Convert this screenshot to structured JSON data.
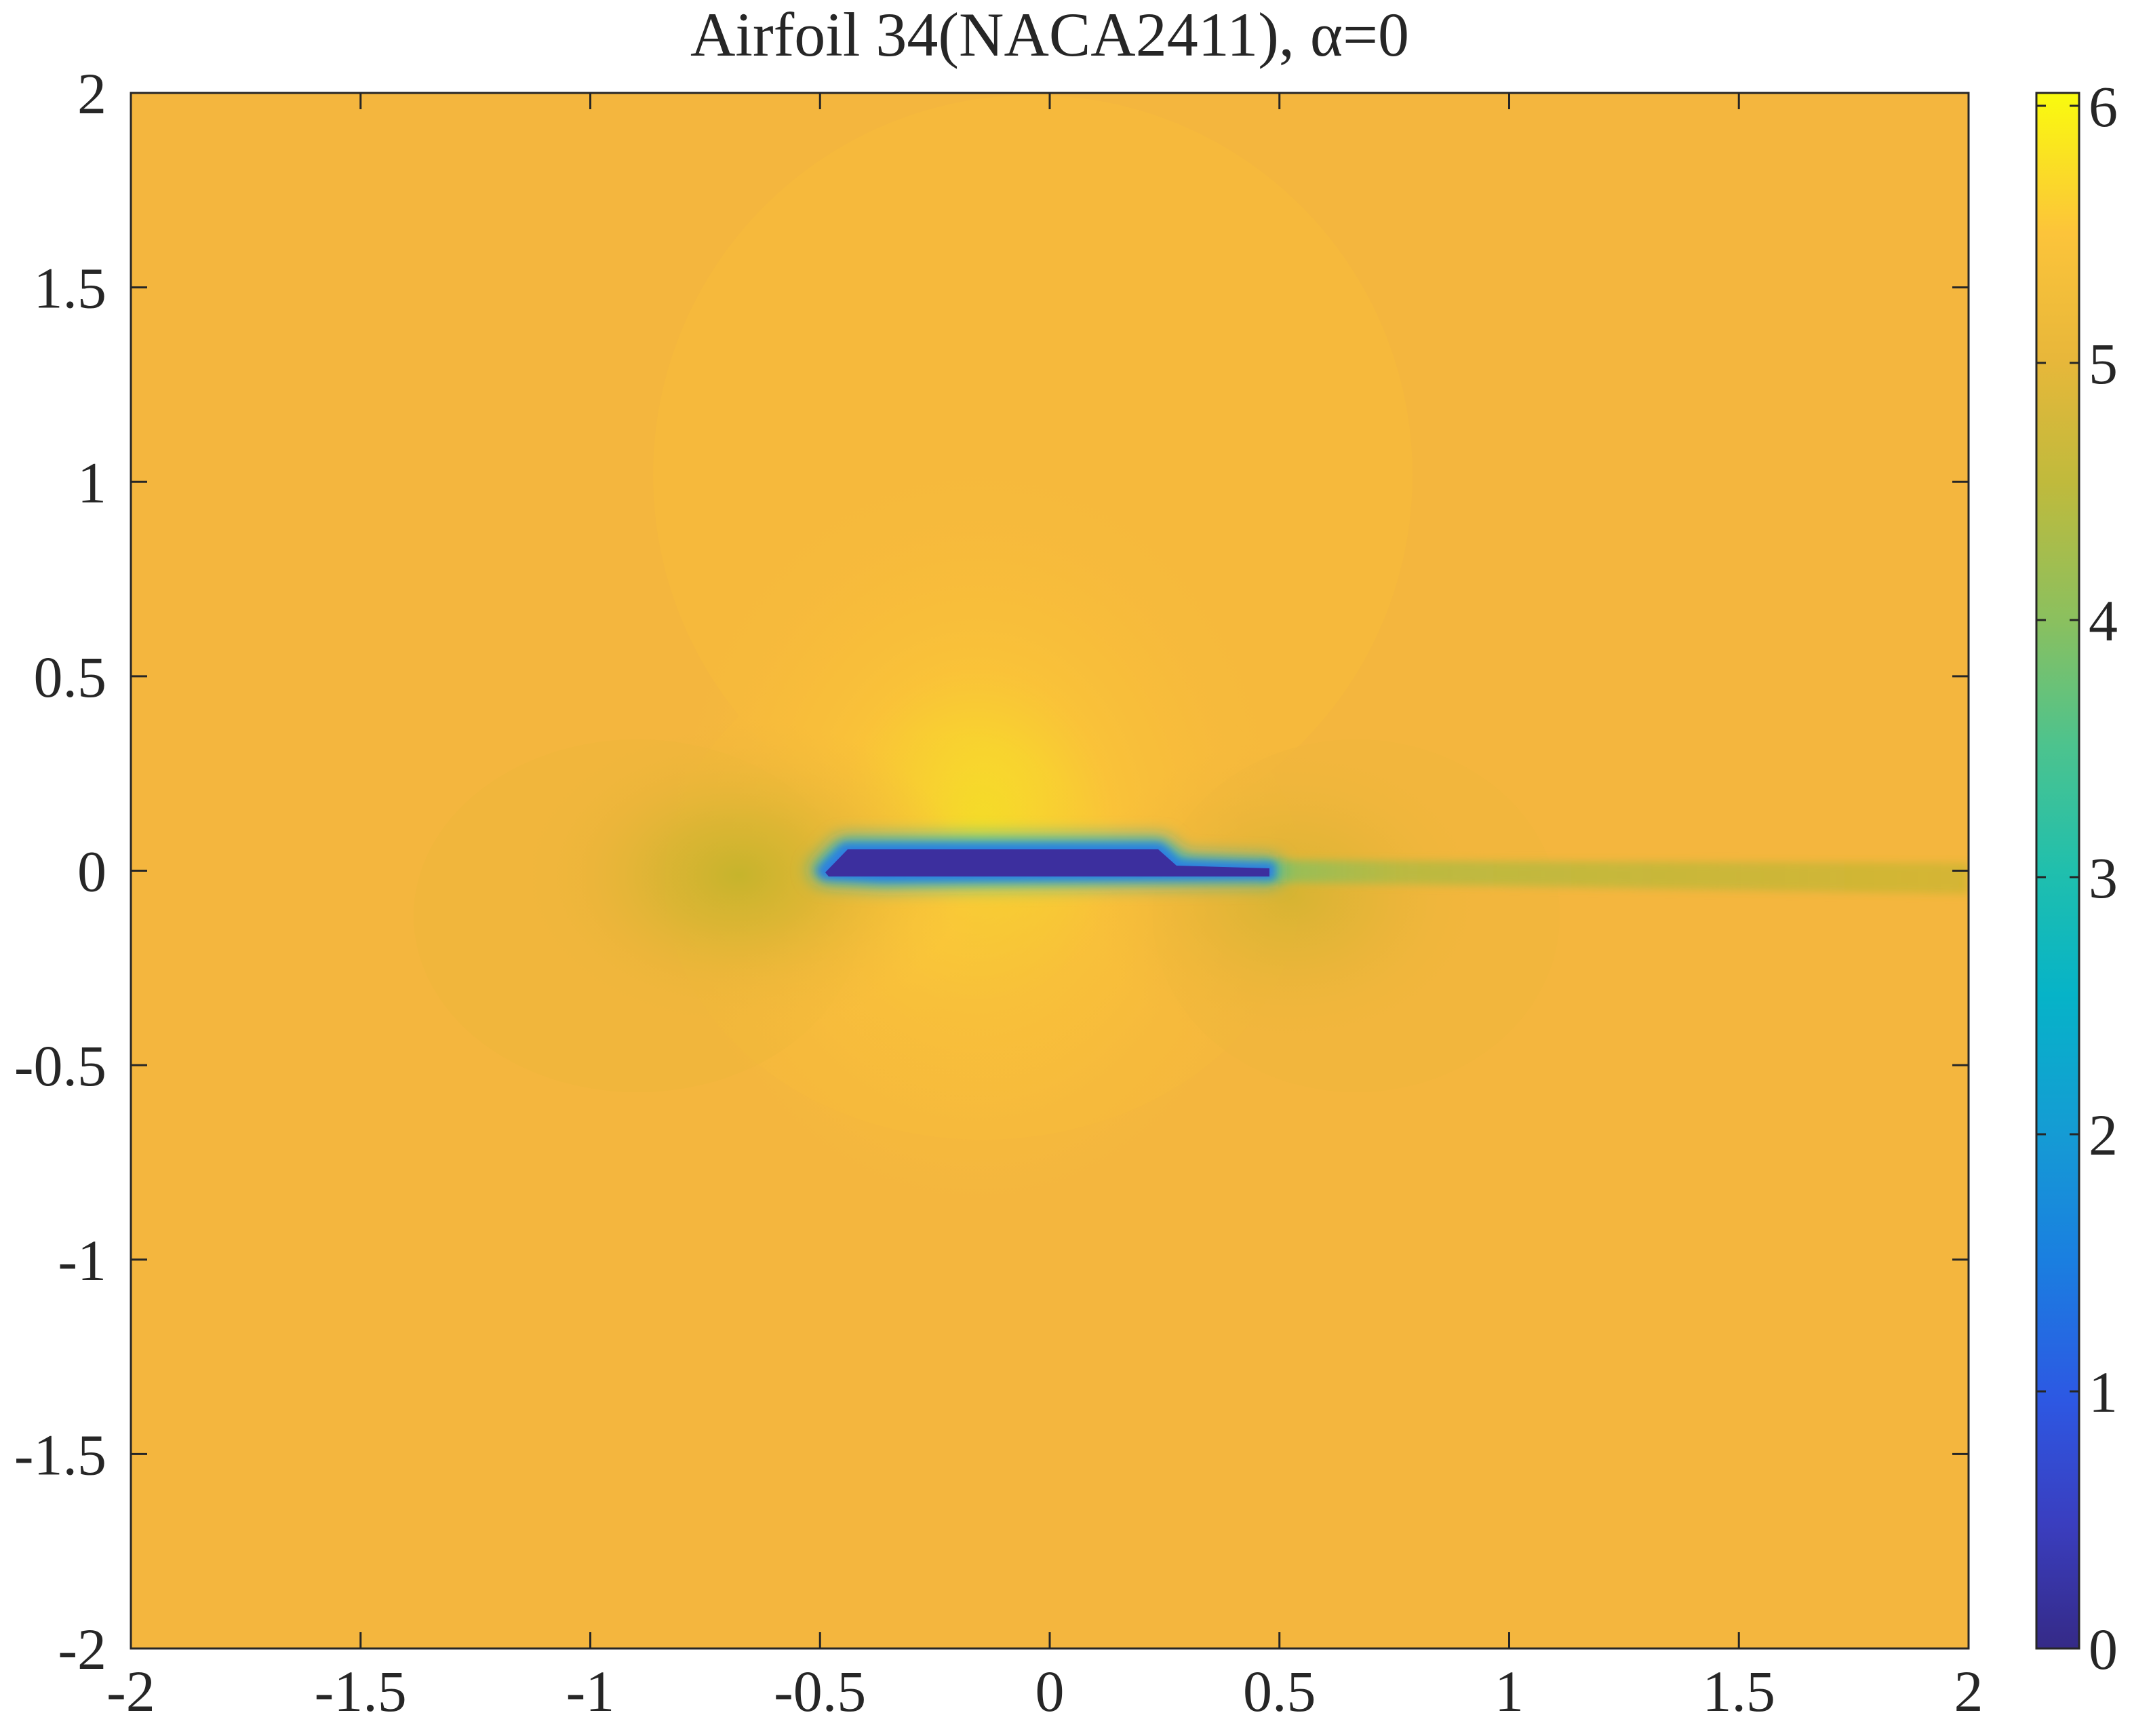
{
  "chart_data": {
    "type": "heatmap",
    "title": "Airfoil 34(NACA2411), α=0",
    "xlabel": "",
    "ylabel": "",
    "xlim": [
      -2,
      2
    ],
    "ylim": [
      -2,
      2
    ],
    "x_ticks": [
      {
        "value": -2,
        "label": "-2"
      },
      {
        "value": -1.5,
        "label": "-1.5"
      },
      {
        "value": -1,
        "label": "-1"
      },
      {
        "value": -0.5,
        "label": "-0.5"
      },
      {
        "value": 0,
        "label": "0"
      },
      {
        "value": 0.5,
        "label": "0.5"
      },
      {
        "value": 1,
        "label": "1"
      },
      {
        "value": 1.5,
        "label": "1.5"
      },
      {
        "value": 2,
        "label": "2"
      }
    ],
    "y_ticks": [
      {
        "value": 2,
        "label": "2"
      },
      {
        "value": 1.5,
        "label": "1.5"
      },
      {
        "value": 1,
        "label": "1"
      },
      {
        "value": 0.5,
        "label": "0.5"
      },
      {
        "value": 0,
        "label": "0"
      },
      {
        "value": -0.5,
        "label": "-0.5"
      },
      {
        "value": -1,
        "label": "-1"
      },
      {
        "value": -1.5,
        "label": "-1.5"
      },
      {
        "value": -2,
        "label": "-2"
      }
    ],
    "colorbar": {
      "colormap": "parula",
      "range": [
        0,
        6.05
      ],
      "ticks": [
        {
          "value": 0,
          "label": "0"
        },
        {
          "value": 1,
          "label": "1"
        },
        {
          "value": 2,
          "label": "2"
        },
        {
          "value": 3,
          "label": "3"
        },
        {
          "value": 4,
          "label": "4"
        },
        {
          "value": 5,
          "label": "5"
        },
        {
          "value": 6,
          "label": "6"
        }
      ],
      "placement": "right"
    },
    "field": {
      "background_value": 5.25,
      "background_color": "#f4b63e",
      "upper_lobe_peak_value": 6.0,
      "upper_lobe_peak_color": "#f2f01a",
      "fore_low_value": 4.6,
      "fore_low_color": "#c9b52c",
      "aft_low_value": 4.7,
      "aft_low_color": "#d9b432",
      "body_value": 0.0,
      "body_color": "#3c2f9e",
      "edge_value": 2.7,
      "edge_color": "#1eb3c9",
      "wake_value": 4.3,
      "wake_color": "#bdb835"
    },
    "grid": false
  }
}
